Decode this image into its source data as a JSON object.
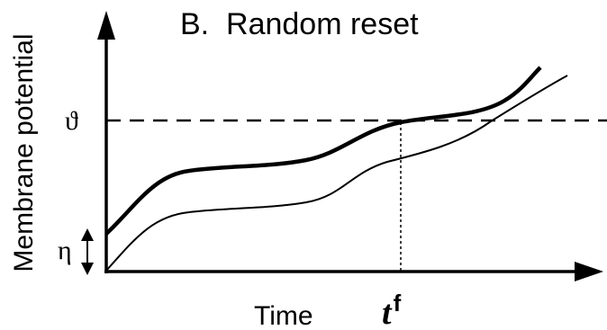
{
  "title": "B.  Random reset",
  "y_axis_label": "Membrane potential",
  "x_axis_label": "Time",
  "threshold_label": "ϑ",
  "reset_noise_label": "η",
  "firing_time_label": {
    "base": "t",
    "superscript": "f"
  },
  "colors": {
    "line": "#000000",
    "background": "#ffffff"
  }
}
